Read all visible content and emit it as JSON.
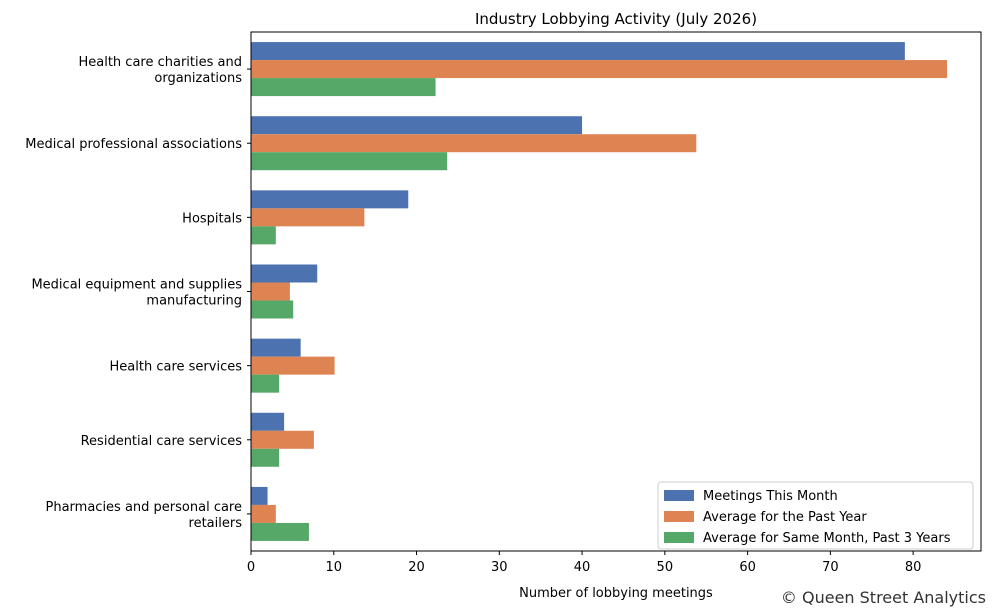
{
  "chart_data": {
    "type": "bar",
    "orientation": "horizontal",
    "title": "Industry Lobbying Activity (July 2026)",
    "xlabel": "Number of lobbying meetings",
    "ylabel": "",
    "xlim": [
      0,
      88.2
    ],
    "xticks": [
      0,
      10,
      20,
      30,
      40,
      50,
      60,
      70,
      80
    ],
    "categories": [
      [
        "Health care charities and",
        "organizations"
      ],
      [
        "Medical professional associations"
      ],
      [
        "Hospitals"
      ],
      [
        "Medical equipment and supplies",
        "manufacturing"
      ],
      [
        "Health care services"
      ],
      [
        "Residential care services"
      ],
      [
        "Pharmacies and personal care",
        "retailers"
      ]
    ],
    "series": [
      {
        "name": "Meetings This Month",
        "color": "#4c72b0",
        "values": [
          79,
          40,
          19,
          8,
          6,
          4,
          2
        ]
      },
      {
        "name": "Average for the Past Year",
        "color": "#dd8452",
        "values": [
          84.1,
          53.8,
          13.7,
          4.7,
          10.1,
          7.6,
          3.0
        ]
      },
      {
        "name": "Average for Same Month, Past 3 Years",
        "color": "#55a868",
        "values": [
          22.3,
          23.7,
          3.0,
          5.1,
          3.4,
          3.4,
          7.0
        ]
      }
    ],
    "legend_position": "lower right",
    "grid": false,
    "credit": "© Queen Street Analytics"
  }
}
